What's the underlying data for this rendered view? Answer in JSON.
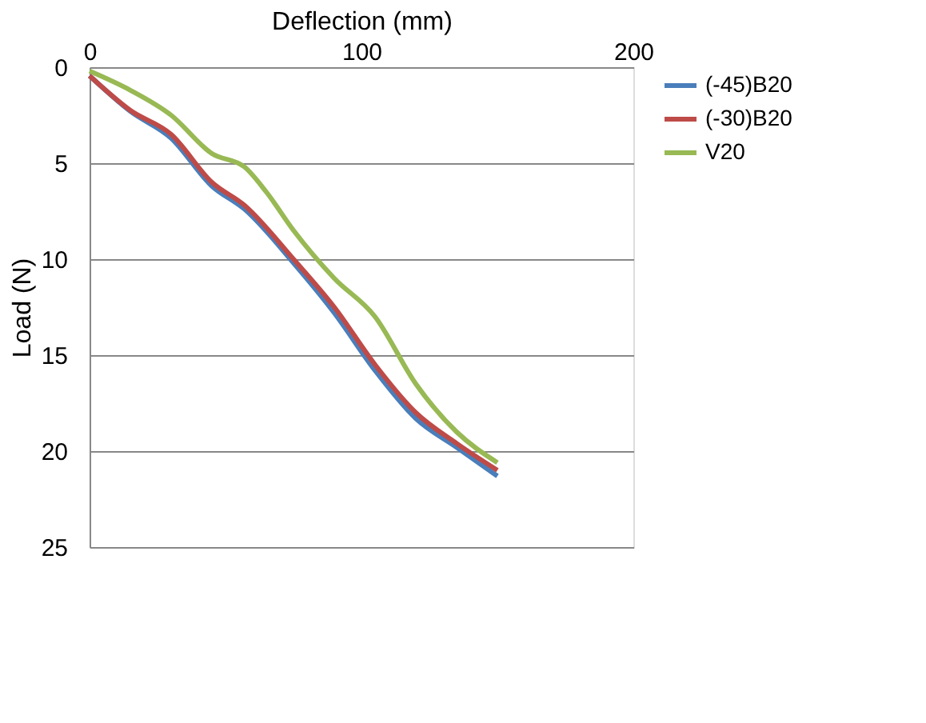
{
  "chart_data": {
    "type": "line",
    "xlabel": "Deflection (mm)",
    "ylabel": "Load (N)",
    "xlim": [
      0,
      200
    ],
    "xticks": [
      0,
      100,
      200
    ],
    "ylim": [
      25,
      0
    ],
    "yticks": [
      0,
      5,
      10,
      15,
      20,
      25
    ],
    "grid": "y",
    "legend": "right",
    "marker": "none",
    "line_style": "solid",
    "series": [
      {
        "name": "(-45)B20",
        "color": "#4a7ebb",
        "x": [
          0,
          15,
          30,
          45,
          57,
          75,
          90,
          105,
          120,
          135,
          150
        ],
        "values": [
          0.45,
          2.3,
          3.7,
          6.2,
          7.4,
          10.2,
          12.8,
          15.8,
          18.3,
          19.8,
          21.3
        ]
      },
      {
        "name": "(-30)B20",
        "color": "#be4b48",
        "x": [
          0,
          15,
          30,
          45,
          57,
          75,
          90,
          105,
          120,
          135,
          150
        ],
        "values": [
          0.45,
          2.25,
          3.5,
          6,
          7.2,
          10,
          12.5,
          15.5,
          18,
          19.6,
          21
        ]
      },
      {
        "name": "V20",
        "color": "#98b954",
        "x": [
          0,
          15,
          30,
          45,
          57,
          65,
          75,
          90,
          105,
          120,
          135,
          150
        ],
        "values": [
          0.2,
          1.2,
          2.5,
          4.5,
          5.2,
          6.5,
          8.5,
          11,
          13,
          16.5,
          19,
          20.6
        ]
      }
    ]
  }
}
